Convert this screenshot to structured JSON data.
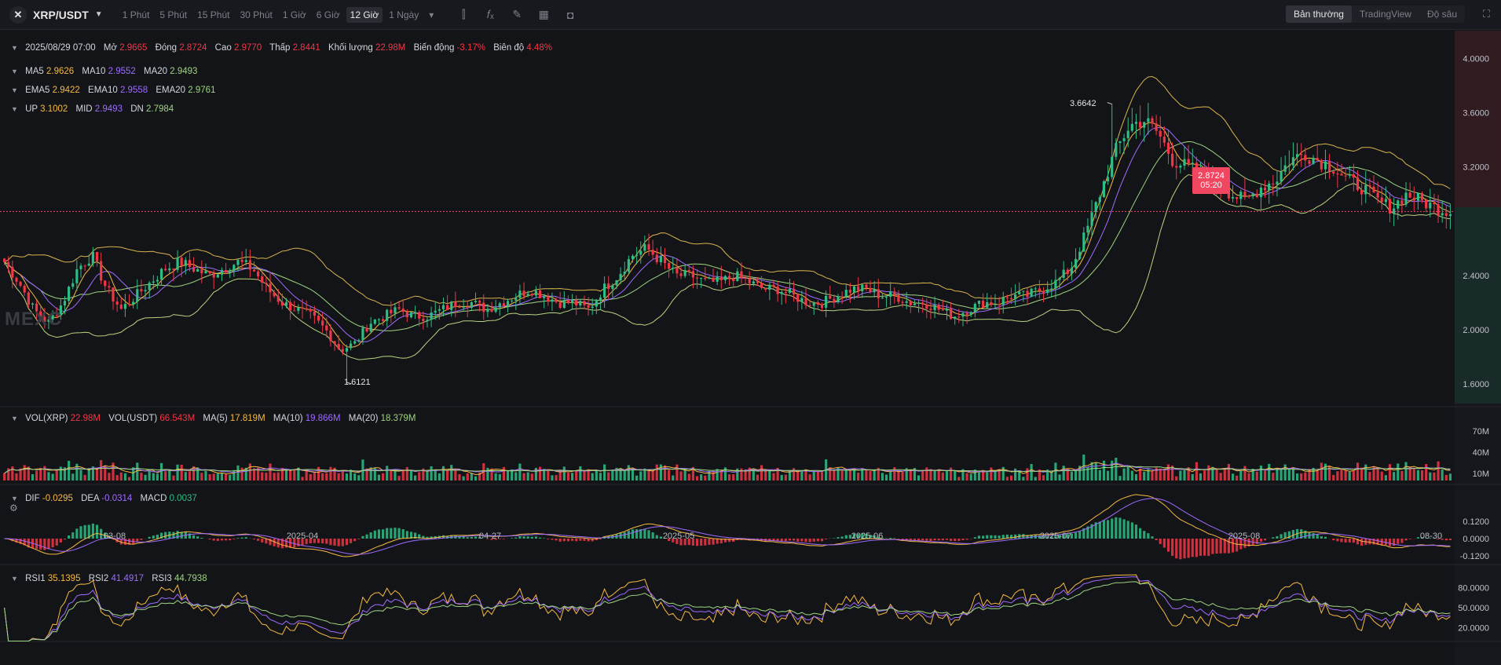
{
  "toolbar": {
    "symbol": "XRP/USDT",
    "intervals": [
      "1 Phút",
      "5 Phút",
      "15 Phút",
      "30 Phút",
      "1 Giờ",
      "6 Giờ",
      "12 Giờ",
      "1 Ngày"
    ],
    "active_interval": "12 Giờ",
    "views": [
      "Bản thường",
      "TradingView",
      "Độ sâu"
    ],
    "active_view": "Bản thường"
  },
  "ohlc": {
    "date": "2025/08/29 07:00",
    "open_label": "Mở",
    "open": "2.9665",
    "close_label": "Đóng",
    "close": "2.8724",
    "high_label": "Cao",
    "high": "2.9770",
    "low_label": "Thấp",
    "low": "2.8441",
    "volume_label": "Khối lượng",
    "volume": "22.98M",
    "change_label": "Biến động",
    "change": "-3.17%",
    "amplitude_label": "Biên độ",
    "amplitude": "4.48%"
  },
  "ma": {
    "ma5_label": "MA5",
    "ma5": "2.9626",
    "ma10_label": "MA10",
    "ma10": "2.9552",
    "ma20_label": "MA20",
    "ma20": "2.9493"
  },
  "ema": {
    "ema5_label": "EMA5",
    "ema5": "2.9422",
    "ema10_label": "EMA10",
    "ema10": "2.9558",
    "ema20_label": "EMA20",
    "ema20": "2.9761"
  },
  "boll": {
    "up_label": "UP",
    "up": "3.1002",
    "mid_label": "MID",
    "mid": "2.9493",
    "dn_label": "DN",
    "dn": "2.7984"
  },
  "vol": {
    "vol_xrp_label": "VOL(XRP)",
    "vol_xrp": "22.98M",
    "vol_usdt_label": "VOL(USDT)",
    "vol_usdt": "66.543M",
    "ma5_label": "MA(5)",
    "ma5": "17.819M",
    "ma10_label": "MA(10)",
    "ma10": "19.866M",
    "ma20_label": "MA(20)",
    "ma20": "18.379M"
  },
  "macd": {
    "dif_label": "DIF",
    "dif": "-0.0295",
    "dea_label": "DEA",
    "dea": "-0.0314",
    "macd_label": "MACD",
    "macd": "0.0037"
  },
  "rsi": {
    "rsi1_label": "RSI1",
    "rsi1": "35.1395",
    "rsi2_label": "RSI2",
    "rsi2": "41.4917",
    "rsi3_label": "RSI3",
    "rsi3": "44.7938"
  },
  "price_axis": [
    "4.0000",
    "3.6000",
    "3.2000",
    "2.4000",
    "2.0000",
    "1.6000"
  ],
  "current_price": "2.8724",
  "countdown": "05:20",
  "high_marker": "3.6642",
  "low_marker": "1.6121",
  "vol_axis": [
    "70M",
    "40M",
    "10M"
  ],
  "macd_axis": [
    "0.1200",
    "0.0000",
    "-0.1200"
  ],
  "rsi_axis": [
    "80.0000",
    "50.0000",
    "20.0000"
  ],
  "time_axis": [
    "03-08",
    "2025-04",
    "04-27",
    "2025-05",
    "2025-06",
    "2025-07",
    "2025-08",
    "08-30"
  ],
  "watermark": "MEXC",
  "colors": {
    "up": "#2ebd85",
    "down": "#f23645",
    "ma5": "#f5b942",
    "ma10": "#9e6bff",
    "ma20": "#9ed47f",
    "background": "#131418"
  },
  "chart_data": {
    "type": "candlestick",
    "instrument": "XRP/USDT",
    "interval": "12 Giờ",
    "ylim": [
      1.45,
      4.2
    ],
    "x_ticks": [
      "03-08",
      "2025-04",
      "04-27",
      "2025-05",
      "2025-06",
      "2025-07",
      "2025-08",
      "08-30"
    ],
    "close_path": [
      2.5,
      2.35,
      2.15,
      2.05,
      2.2,
      2.45,
      2.55,
      2.3,
      2.15,
      2.25,
      2.35,
      2.45,
      2.5,
      2.45,
      2.4,
      2.45,
      2.5,
      2.45,
      2.3,
      2.2,
      2.15,
      2.1,
      2.0,
      1.85,
      1.9,
      2.05,
      2.1,
      2.15,
      2.1,
      2.1,
      2.15,
      2.2,
      2.2,
      2.15,
      2.2,
      2.25,
      2.3,
      2.25,
      2.2,
      2.2,
      2.15,
      2.3,
      2.4,
      2.55,
      2.6,
      2.5,
      2.4,
      2.4,
      2.35,
      2.35,
      2.4,
      2.35,
      2.3,
      2.3,
      2.25,
      2.2,
      2.2,
      2.25,
      2.3,
      2.3,
      2.25,
      2.25,
      2.2,
      2.2,
      2.15,
      2.1,
      2.15,
      2.2,
      2.2,
      2.25,
      2.25,
      2.3,
      2.35,
      2.45,
      2.7,
      3.0,
      3.3,
      3.5,
      3.55,
      3.45,
      3.25,
      3.2,
      3.15,
      3.1,
      3.0,
      2.95,
      3.05,
      3.1,
      3.25,
      3.3,
      3.25,
      3.2,
      3.1,
      3.05,
      2.95,
      2.9,
      3.0,
      2.95,
      2.9,
      2.87
    ]
  }
}
